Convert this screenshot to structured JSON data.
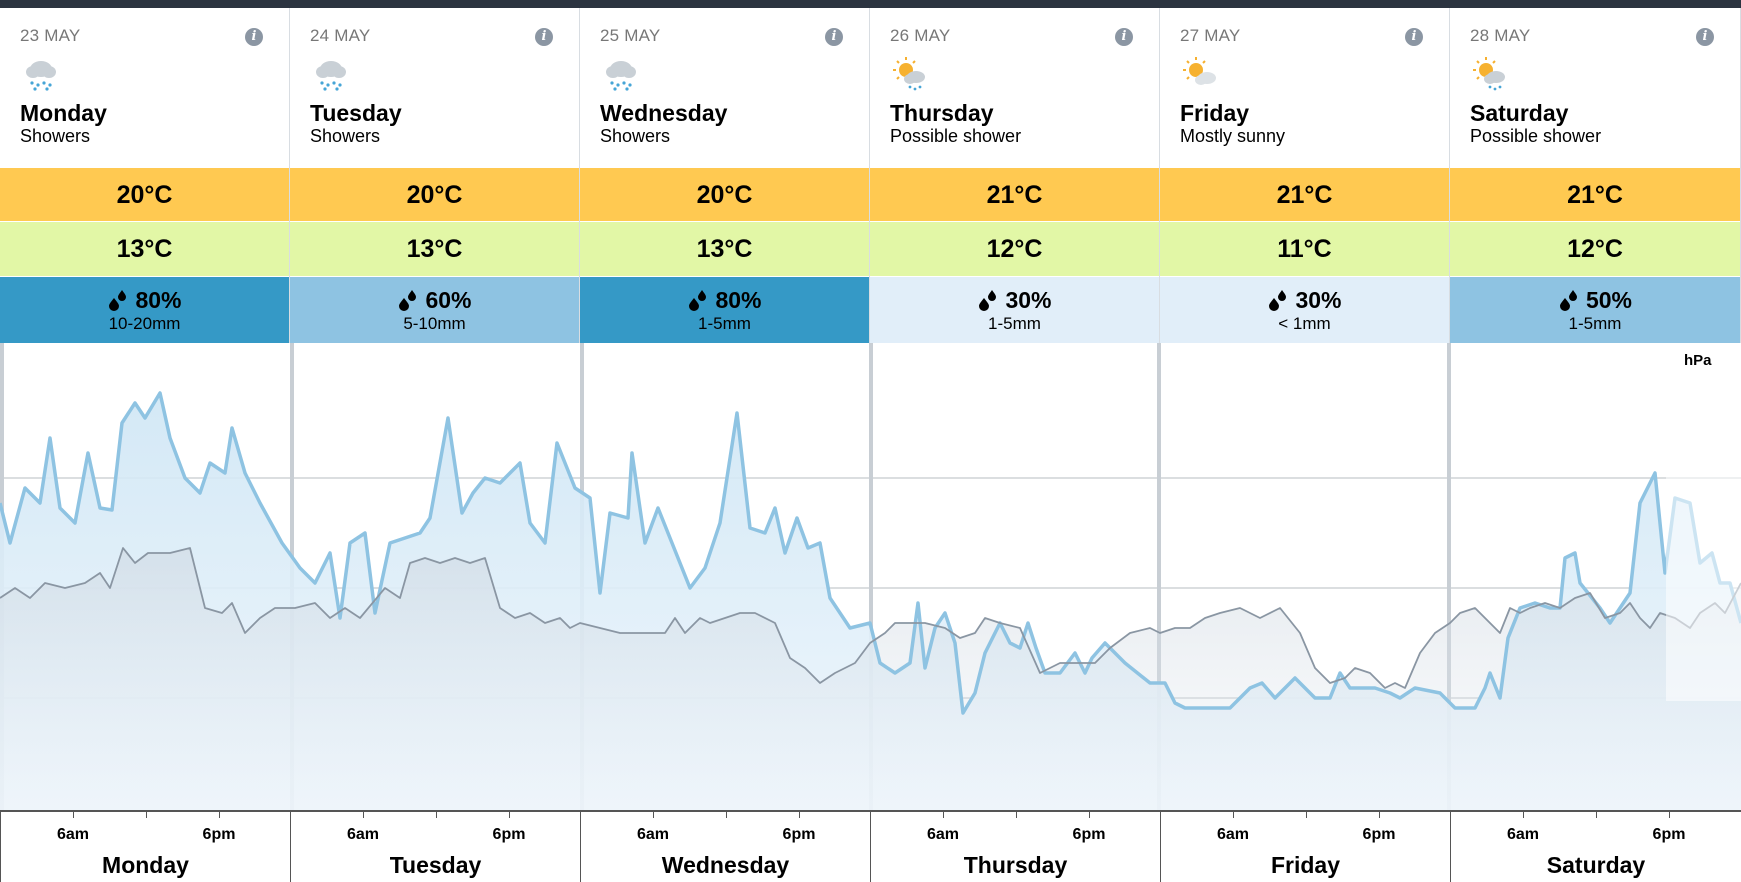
{
  "days": [
    {
      "date": "23 MAY",
      "name": "Monday",
      "condition": "Showers",
      "icon": "showers-icon",
      "max": "20°C",
      "min": "13°C",
      "rain_chance": "80%",
      "rain_amount": "10-20mm",
      "rain_level": "high"
    },
    {
      "date": "24 MAY",
      "name": "Tuesday",
      "condition": "Showers",
      "icon": "showers-icon",
      "max": "20°C",
      "min": "13°C",
      "rain_chance": "60%",
      "rain_amount": "5-10mm",
      "rain_level": "mid"
    },
    {
      "date": "25 MAY",
      "name": "Wednesday",
      "condition": "Showers",
      "icon": "showers-icon",
      "max": "20°C",
      "min": "13°C",
      "rain_chance": "80%",
      "rain_amount": "1-5mm",
      "rain_level": "high"
    },
    {
      "date": "26 MAY",
      "name": "Thursday",
      "condition": "Possible shower",
      "icon": "sun-shower-icon",
      "max": "21°C",
      "min": "12°C",
      "rain_chance": "30%",
      "rain_amount": "1-5mm",
      "rain_level": "low"
    },
    {
      "date": "27 MAY",
      "name": "Friday",
      "condition": "Mostly sunny",
      "icon": "mostly-sunny-icon",
      "max": "21°C",
      "min": "11°C",
      "rain_chance": "30%",
      "rain_amount": "< 1mm",
      "rain_level": "low"
    },
    {
      "date": "28 MAY",
      "name": "Saturday",
      "condition": "Possible shower",
      "icon": "sun-shower-icon",
      "max": "21°C",
      "min": "12°C",
      "rain_chance": "50%",
      "rain_amount": "1-5mm",
      "rain_level": "mid"
    }
  ],
  "info_label": "i",
  "chart": {
    "unit_label": "hPa",
    "tick_labels": [
      "6am",
      "6pm"
    ]
  },
  "colors": {
    "max_temp_bg": "#ffc951",
    "min_temp_bg": "#e2f7a6",
    "rain_high_bg": "#3599c6",
    "rain_mid_bg": "#8ec3e2",
    "rain_low_bg": "#e1eef9",
    "line_blue": "#8ec3e2",
    "line_grey": "#8a96a3"
  }
}
